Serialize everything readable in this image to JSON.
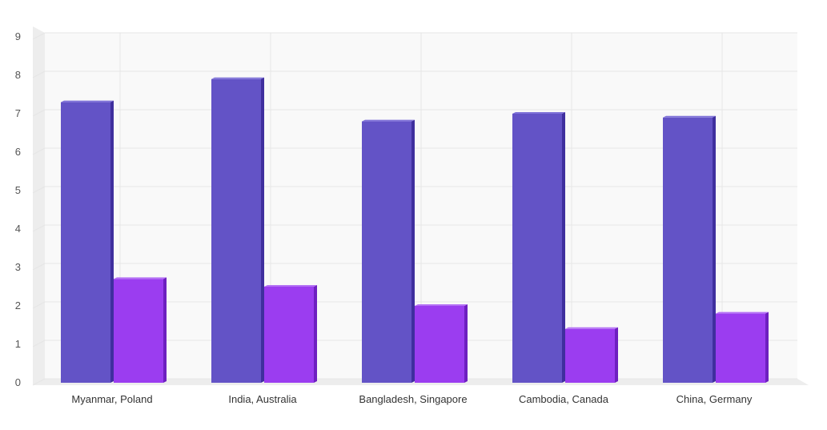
{
  "chart_data": {
    "type": "bar",
    "categories": [
      "Myanmar, Poland",
      "India, Australia",
      "Bangladesh, Singapore",
      "Cambodia, Canada",
      "China, Germany"
    ],
    "series": [
      {
        "values": [
          7.3,
          7.9,
          6.8,
          7.0,
          6.9
        ]
      },
      {
        "values": [
          2.7,
          2.5,
          2.0,
          1.4,
          1.8
        ]
      }
    ],
    "ylim": [
      0,
      9
    ],
    "y_ticks": [
      0,
      1,
      2,
      3,
      4,
      5,
      6,
      7,
      8,
      9
    ],
    "grid": true,
    "style": "3d-columns",
    "colors": {
      "series": [
        "#6353C6",
        "#9B3DF0"
      ],
      "series_side": [
        "#3F2F9E",
        "#6E20C0"
      ],
      "series_top": [
        "#7F72D8",
        "#B471F5"
      ],
      "plot_background": "#F9F9F9",
      "gridline": "#E6E6E6",
      "axis_wall": "#EDEDED",
      "tick_text": "#555555",
      "label_text": "#333333"
    }
  }
}
